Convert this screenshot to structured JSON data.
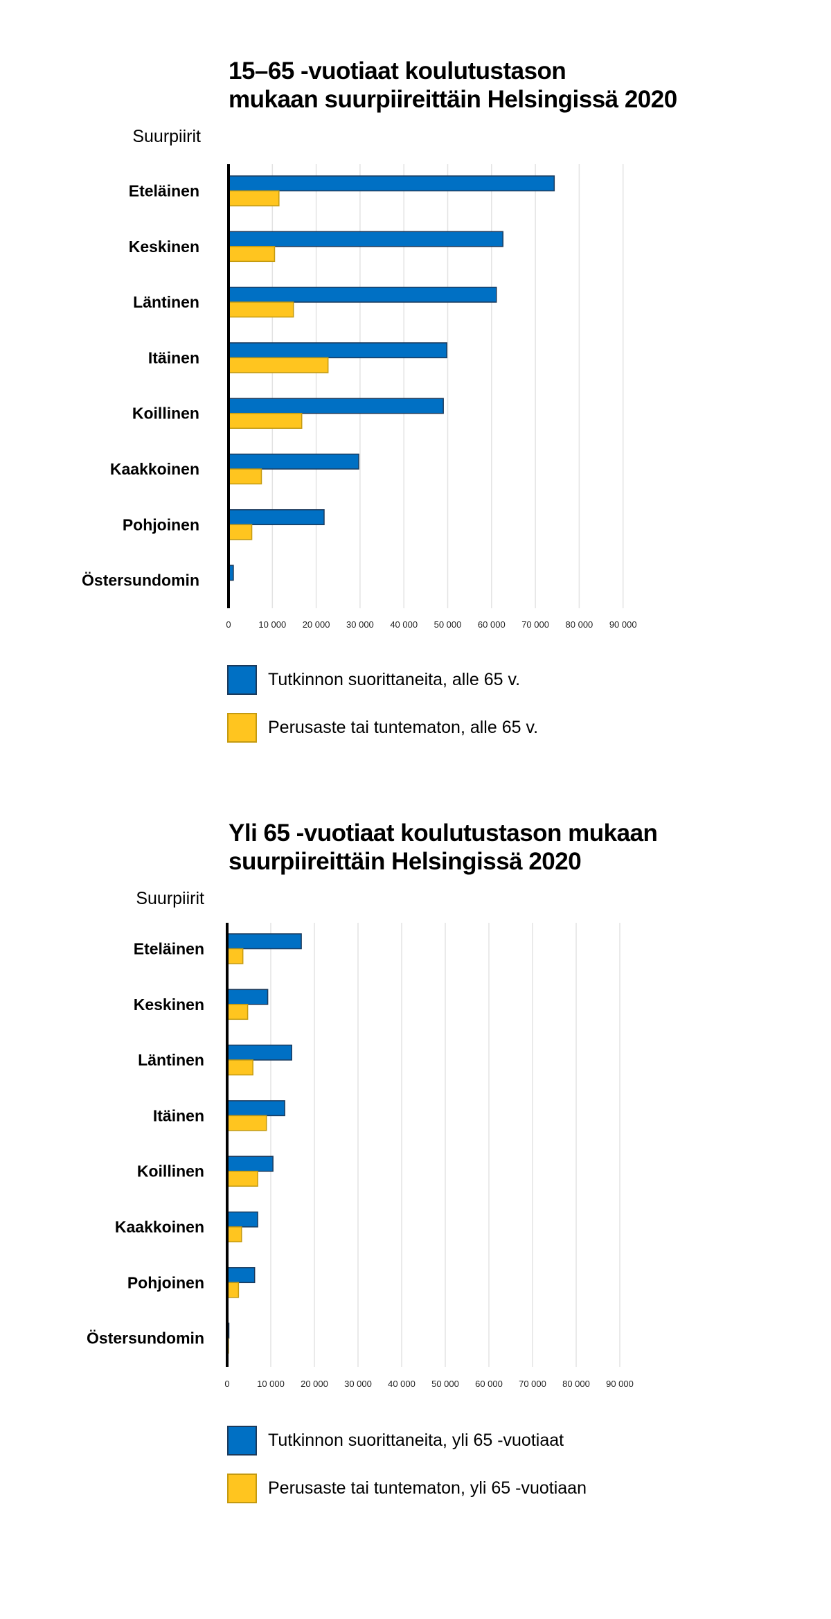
{
  "colors": {
    "series_blue": "#0070C4",
    "series_blue_border": "#1B3A5C",
    "series_yellow": "#FFC51F",
    "series_yellow_border": "#C49A10",
    "gridline": "#E3E3E3",
    "axis": "#000000"
  },
  "chart_data": [
    {
      "type": "bar",
      "orientation": "horizontal",
      "title": "15–65 -vuotiaat koulutustason\nmukaan suurpiireittäin Helsingissä 2020",
      "ylabel": "Suurpiirit",
      "xlabel": "",
      "categories": [
        "Eteläinen",
        "Keskinen",
        "Läntinen",
        "Itäinen",
        "Koillinen",
        "Kaakkoinen",
        "Pohjoinen",
        "Östersundomin"
      ],
      "series": [
        {
          "name": "Tutkinnon suorittaneita, alle 65 v.",
          "color": "#0070C4",
          "values": [
            74300,
            62600,
            61100,
            49800,
            49000,
            29700,
            21800,
            1100
          ]
        },
        {
          "name": "Perusaste tai tuntematon, alle 65 v.",
          "color": "#FFC51F",
          "values": [
            11500,
            10500,
            14800,
            22700,
            16700,
            7500,
            5300,
            100
          ]
        }
      ],
      "xlim": [
        0,
        90000
      ],
      "xticks": [
        0,
        10000,
        20000,
        30000,
        40000,
        50000,
        60000,
        70000,
        80000,
        90000
      ],
      "xtick_labels": [
        "0",
        "10 000",
        "20 000",
        "30 000",
        "40 000",
        "50 000",
        "60 000",
        "70 000",
        "80 000",
        "90 000"
      ],
      "grid": true,
      "legend": "bottom"
    },
    {
      "type": "bar",
      "orientation": "horizontal",
      "title": "Yli 65 -vuotiaat koulutustason mukaan\nsuurpiireittäin Helsingissä 2020",
      "ylabel": "Suurpiirit",
      "xlabel": "",
      "categories": [
        "Eteläinen",
        "Keskinen",
        "Läntinen",
        "Itäinen",
        "Koillinen",
        "Kaakkoinen",
        "Pohjoinen",
        "Östersundomin"
      ],
      "series": [
        {
          "name": "Tutkinnon suorittaneita, yli 65 -vuotiaat",
          "color": "#0070C4",
          "values": [
            17000,
            9300,
            14800,
            13200,
            10500,
            7000,
            6300,
            400
          ]
        },
        {
          "name": "Perusaste tai tuntematon, yli 65 -vuotiaan",
          "color": "#FFC51F",
          "values": [
            3600,
            4700,
            5900,
            9000,
            7000,
            3300,
            2600,
            300
          ]
        }
      ],
      "xlim": [
        0,
        90000
      ],
      "xticks": [
        0,
        10000,
        20000,
        30000,
        40000,
        50000,
        60000,
        70000,
        80000,
        90000
      ],
      "xtick_labels": [
        "0",
        "10 000",
        "20 000",
        "30 000",
        "40 000",
        "50 000",
        "60 000",
        "70 000",
        "80 000",
        "90 000"
      ],
      "grid": true,
      "legend": "bottom"
    }
  ]
}
